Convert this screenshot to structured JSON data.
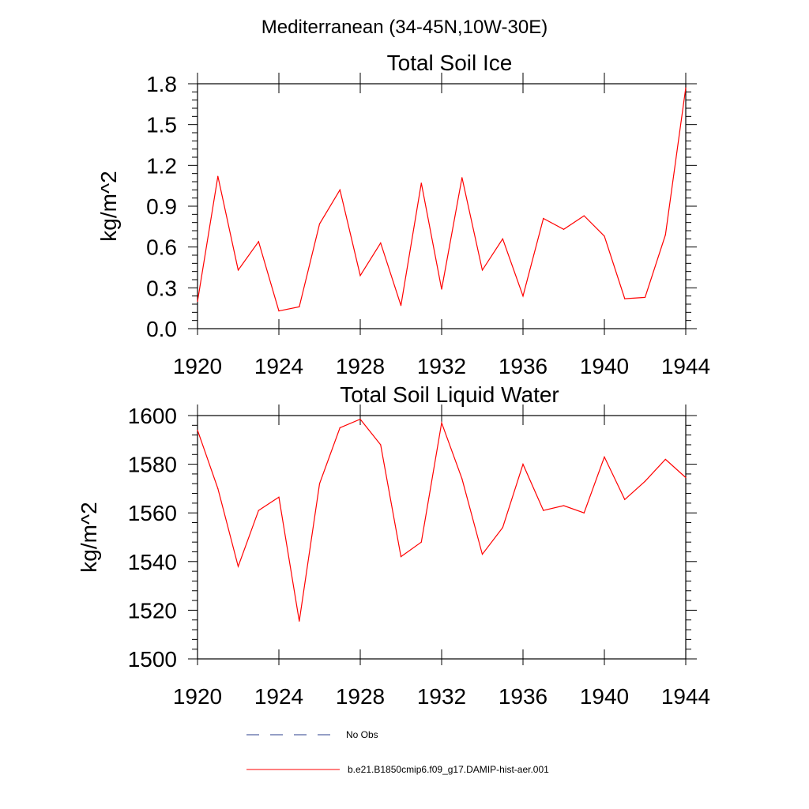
{
  "region_title": "Mediterranean (34-45N,10W-30E)",
  "chart_data": [
    {
      "type": "line",
      "title": "Total Soil Ice",
      "ylabel": "kg/m^2",
      "xlabel": "",
      "xlim": [
        1920,
        1944
      ],
      "ylim": [
        0.0,
        1.8
      ],
      "xticks": [
        "1920",
        "1924",
        "1928",
        "1932",
        "1936",
        "1940",
        "1944"
      ],
      "yticks": [
        "0.0",
        "0.3",
        "0.6",
        "0.9",
        "1.2",
        "1.5",
        "1.8"
      ],
      "grid": false,
      "series": [
        {
          "name": "b.e21.B1850cmip6.f09_g17.DAMIP-hist-aer.001",
          "color": "#ff0000",
          "x": [
            1920,
            1921,
            1922,
            1923,
            1924,
            1925,
            1926,
            1927,
            1928,
            1929,
            1930,
            1931,
            1932,
            1933,
            1934,
            1935,
            1936,
            1937,
            1938,
            1939,
            1940,
            1941,
            1942,
            1943,
            1944
          ],
          "y": [
            0.2,
            1.12,
            0.43,
            0.64,
            0.13,
            0.16,
            0.77,
            1.02,
            0.39,
            0.63,
            0.17,
            1.07,
            0.29,
            1.11,
            0.43,
            0.66,
            0.24,
            0.81,
            0.73,
            0.83,
            0.68,
            0.22,
            0.23,
            0.69,
            1.77
          ]
        }
      ]
    },
    {
      "type": "line",
      "title": "Total Soil Liquid Water",
      "ylabel": "kg/m^2",
      "xlabel": "",
      "xlim": [
        1920,
        1944
      ],
      "ylim": [
        1500,
        1600
      ],
      "xticks": [
        "1920",
        "1924",
        "1928",
        "1932",
        "1936",
        "1940",
        "1944"
      ],
      "yticks": [
        "1500",
        "1520",
        "1540",
        "1560",
        "1580",
        "1600"
      ],
      "grid": false,
      "series": [
        {
          "name": "b.e21.B1850cmip6.f09_g17.DAMIP-hist-aer.001",
          "color": "#ff0000",
          "x": [
            1920,
            1921,
            1922,
            1923,
            1924,
            1925,
            1926,
            1927,
            1928,
            1929,
            1930,
            1931,
            1932,
            1933,
            1934,
            1935,
            1936,
            1937,
            1938,
            1939,
            1940,
            1941,
            1942,
            1943,
            1944
          ],
          "y": [
            1594,
            1570,
            1538,
            1561,
            1566.5,
            1515.5,
            1572,
            1595,
            1598.5,
            1588,
            1542,
            1548,
            1597,
            1574,
            1543,
            1554,
            1580,
            1561,
            1563,
            1560,
            1583,
            1565.5,
            1573,
            1582,
            1574.5
          ]
        }
      ]
    }
  ],
  "legend": [
    {
      "label": "No Obs",
      "color": "#2b3f8c",
      "style": "dashed"
    },
    {
      "label": "b.e21.B1850cmip6.f09_g17.DAMIP-hist-aer.001",
      "color": "#ff0000",
      "style": "solid"
    }
  ]
}
